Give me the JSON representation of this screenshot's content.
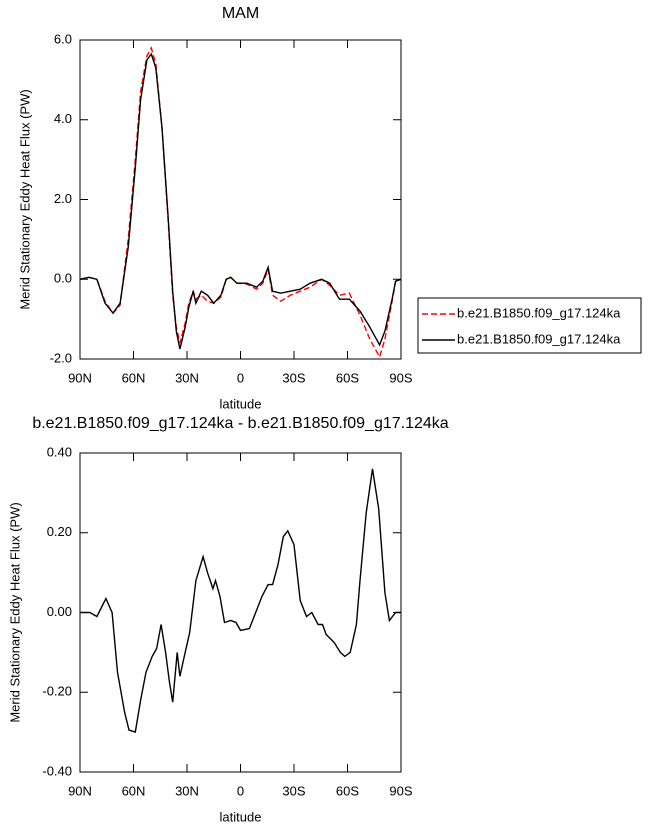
{
  "chart_data": [
    {
      "type": "line",
      "title": "MAM",
      "xlabel": "latitude",
      "ylabel": "Merid Stationary Eddy Heat Flux (PW)",
      "xlim": [
        90,
        -90
      ],
      "xticks": [
        {
          "value": 90,
          "label": "90N"
        },
        {
          "value": 60,
          "label": "60N"
        },
        {
          "value": 30,
          "label": "30N"
        },
        0,
        {
          "value": -30,
          "label": "30S"
        },
        {
          "value": -60,
          "label": "60S"
        },
        {
          "value": -90,
          "label": "90S"
        }
      ],
      "ylim": [
        -2,
        6
      ],
      "yticks": [
        {
          "value": -2,
          "label": "-2.0"
        },
        {
          "value": 0,
          "label": "0.0"
        },
        {
          "value": 2,
          "label": "2.0"
        },
        {
          "value": 4,
          "label": "4.0"
        },
        {
          "value": 6,
          "label": "6.0"
        }
      ],
      "legend": "right",
      "x": [
        90,
        85,
        80.5,
        76,
        71.5,
        67.5,
        63,
        59,
        56,
        52.5,
        50,
        47.5,
        44,
        40.5,
        38,
        36,
        34,
        31,
        29,
        26.5,
        25,
        22,
        18.5,
        15,
        11,
        8,
        5.5,
        2,
        -3.5,
        -9,
        -12.5,
        -15.5,
        -18,
        -22.5,
        -28,
        -33.5,
        -39,
        -45.5,
        -50,
        -55.5,
        -61,
        -67,
        -72.5,
        -78,
        -81,
        -85,
        -87,
        -90
      ],
      "series": [
        {
          "name": "b.e21.B1850.f09_g17.124ka",
          "color": "#ff0000",
          "dash": "dashed",
          "values": [
            0,
            0.05,
            0,
            -0.55,
            -0.85,
            -0.65,
            1.0,
            3.0,
            4.7,
            5.6,
            5.8,
            5.4,
            3.8,
            1.4,
            -0.4,
            -1.2,
            -1.6,
            -1.1,
            -0.6,
            -0.3,
            -0.5,
            -0.4,
            -0.55,
            -0.6,
            -0.45,
            0,
            0.05,
            -0.1,
            -0.12,
            -0.25,
            -0.1,
            0.25,
            -0.4,
            -0.55,
            -0.4,
            -0.3,
            -0.2,
            0,
            -0.15,
            -0.4,
            -0.35,
            -0.9,
            -1.5,
            -1.95,
            -1.5,
            -0.55,
            -0.05,
            0
          ]
        },
        {
          "name": "b.e21.B1850.f09_g17.124ka",
          "color": "#000000",
          "dash": "solid",
          "values": [
            0,
            0.05,
            0,
            -0.6,
            -0.85,
            -0.6,
            0.8,
            2.8,
            4.5,
            5.5,
            5.65,
            5.3,
            3.8,
            1.5,
            -0.3,
            -1.3,
            -1.75,
            -1.2,
            -0.7,
            -0.3,
            -0.6,
            -0.3,
            -0.4,
            -0.6,
            -0.4,
            0,
            0.05,
            -0.1,
            -0.1,
            -0.2,
            -0.05,
            0.3,
            -0.3,
            -0.35,
            -0.3,
            -0.25,
            -0.1,
            0,
            -0.1,
            -0.5,
            -0.5,
            -0.8,
            -1.2,
            -1.65,
            -1.3,
            -0.5,
            -0.05,
            0
          ]
        }
      ]
    },
    {
      "type": "line",
      "title": "b.e21.B1850.f09_g17.124ka - b.e21.B1850.f09_g17.124ka",
      "xlabel": "latitude",
      "ylabel": "Merid Stationary Eddy Heat Flux (PW)",
      "xlim": [
        90,
        -90
      ],
      "xticks": [
        {
          "value": 90,
          "label": "90N"
        },
        {
          "value": 60,
          "label": "60N"
        },
        {
          "value": 30,
          "label": "30N"
        },
        0,
        {
          "value": -30,
          "label": "30S"
        },
        {
          "value": -60,
          "label": "60S"
        },
        {
          "value": -90,
          "label": "90S"
        }
      ],
      "ylim": [
        -0.4,
        0.4
      ],
      "yticks": [
        {
          "value": -0.4,
          "label": "-0.40"
        },
        {
          "value": -0.2,
          "label": "-0.20"
        },
        {
          "value": 0,
          "label": "0.00"
        },
        {
          "value": 0.2,
          "label": "0.20"
        },
        {
          "value": 0.4,
          "label": "0.40"
        }
      ],
      "x": [
        90,
        84.5,
        80.5,
        75.5,
        72,
        69,
        65,
        62.5,
        59,
        56,
        53,
        49.5,
        47,
        44.5,
        42,
        40,
        38,
        35.5,
        34,
        32,
        28.5,
        25,
        21,
        18.5,
        15.5,
        14,
        11.5,
        9,
        5.5,
        2.5,
        0,
        -5,
        -8.5,
        -12,
        -15.5,
        -18,
        -21,
        -24,
        -26.5,
        -30,
        -33.5,
        -37,
        -40,
        -43.5,
        -46,
        -48,
        -52.5,
        -56,
        -58.5,
        -61.5,
        -65,
        -67,
        -70.5,
        -74,
        -77.5,
        -81,
        -83.5,
        -87,
        -90
      ],
      "series": [
        {
          "color": "#000000",
          "dash": "solid",
          "values": [
            0,
            0,
            -0.01,
            0.035,
            0,
            -0.15,
            -0.25,
            -0.295,
            -0.3,
            -0.22,
            -0.15,
            -0.11,
            -0.09,
            -0.03,
            -0.1,
            -0.17,
            -0.225,
            -0.1,
            -0.16,
            -0.12,
            -0.05,
            0.08,
            0.14,
            0.1,
            0.06,
            0.08,
            0.04,
            -0.025,
            -0.02,
            -0.025,
            -0.045,
            -0.04,
            0,
            0.04,
            0.07,
            0.07,
            0.12,
            0.19,
            0.205,
            0.17,
            0.03,
            -0.01,
            0,
            -0.03,
            -0.03,
            -0.055,
            -0.075,
            -0.1,
            -0.11,
            -0.1,
            -0.03,
            0.08,
            0.25,
            0.36,
            0.26,
            0.05,
            -0.02,
            0,
            0
          ]
        }
      ]
    }
  ]
}
